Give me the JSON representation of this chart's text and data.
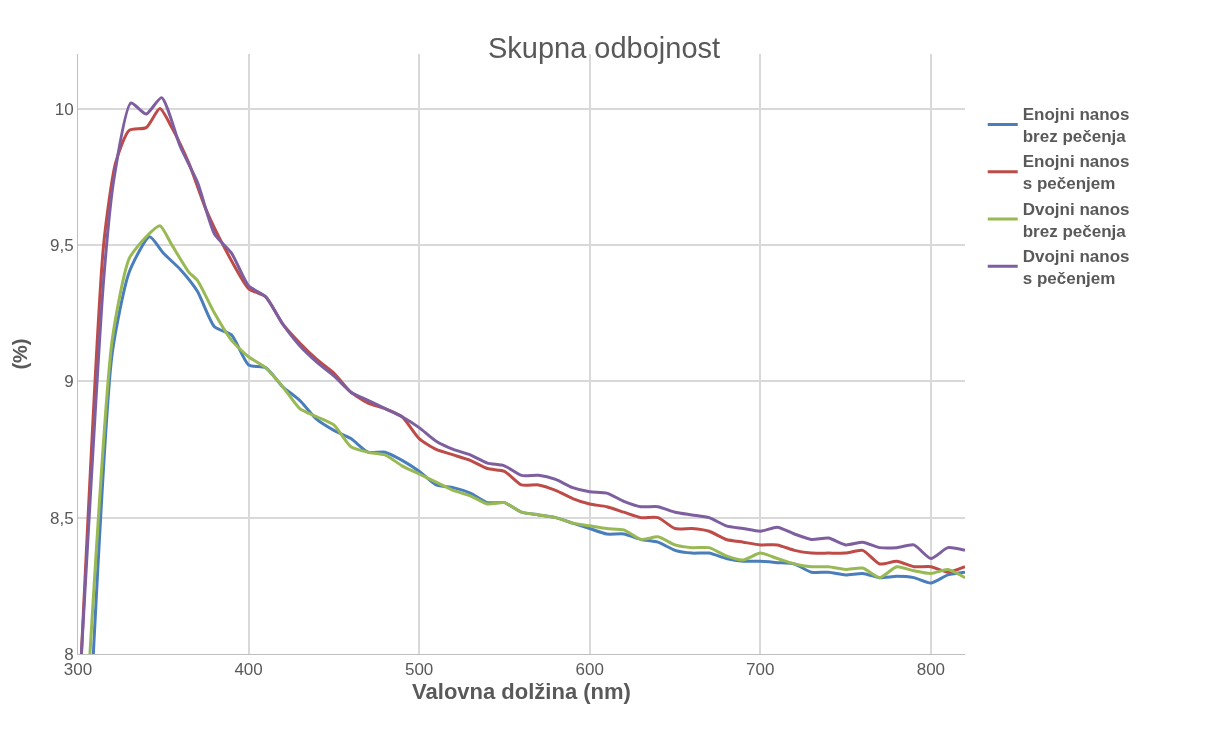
{
  "chart_data": {
    "type": "line",
    "title": "Skupna odbojnost",
    "xlabel": "Valovna dolžina (nm)",
    "ylabel": "(%)",
    "xlim": [
      300,
      820
    ],
    "xticks": [
      300,
      400,
      500,
      600,
      700,
      800
    ],
    "ylim": [
      8,
      10.2
    ],
    "yticks": [
      8,
      {
        "value": 8.5,
        "label": "8,5"
      },
      9,
      {
        "value": 9.5,
        "label": "9,5"
      },
      10
    ],
    "grid": true,
    "legend": "right",
    "marker": "none",
    "line_style": "solid",
    "series": [
      {
        "name": "Enojni nanos\nbrez pečenja",
        "color": "#4a7ebb",
        "x": [
          309,
          320,
          330,
          342,
          350,
          360,
          370,
          380,
          390,
          400,
          410,
          420,
          430,
          440,
          450,
          460,
          470,
          480,
          490,
          500,
          510,
          520,
          530,
          540,
          550,
          560,
          570,
          580,
          590,
          600,
          610,
          620,
          630,
          640,
          650,
          660,
          670,
          680,
          690,
          700,
          710,
          720,
          730,
          740,
          750,
          760,
          770,
          780,
          790,
          800,
          810,
          820
        ],
        "values": [
          8,
          9.1,
          9.4,
          9.53,
          9.47,
          9.41,
          9.33,
          9.2,
          9.17,
          9.06,
          9.05,
          8.98,
          8.93,
          8.86,
          8.82,
          8.79,
          8.74,
          8.74,
          8.71,
          8.67,
          8.62,
          8.61,
          8.59,
          8.555,
          8.555,
          8.52,
          8.51,
          8.5,
          8.48,
          8.46,
          8.44,
          8.44,
          8.42,
          8.41,
          8.38,
          8.37,
          8.37,
          8.35,
          8.34,
          8.34,
          8.335,
          8.33,
          8.3,
          8.3,
          8.29,
          8.295,
          8.28,
          8.285,
          8.28,
          8.26,
          8.29,
          8.3
        ]
      },
      {
        "name": "Enojni nanos\ns pečenjem",
        "color": "#be4b48",
        "x": [
          302,
          315,
          322,
          330,
          340,
          348,
          355,
          365,
          375,
          385,
          400,
          410,
          420,
          430,
          440,
          450,
          460,
          470,
          480,
          490,
          500,
          510,
          520,
          530,
          540,
          550,
          560,
          570,
          580,
          590,
          600,
          610,
          620,
          630,
          640,
          650,
          660,
          670,
          680,
          690,
          700,
          710,
          720,
          730,
          740,
          750,
          760,
          770,
          780,
          790,
          800,
          810,
          820
        ],
        "values": [
          8,
          9.5,
          9.8,
          9.92,
          9.93,
          10.0,
          9.93,
          9.8,
          9.63,
          9.5,
          9.34,
          9.31,
          9.21,
          9.14,
          9.08,
          9.03,
          8.96,
          8.92,
          8.9,
          8.87,
          8.79,
          8.75,
          8.73,
          8.71,
          8.68,
          8.67,
          8.62,
          8.62,
          8.6,
          8.57,
          8.55,
          8.54,
          8.52,
          8.5,
          8.5,
          8.46,
          8.46,
          8.45,
          8.42,
          8.41,
          8.4,
          8.4,
          8.38,
          8.37,
          8.37,
          8.37,
          8.38,
          8.33,
          8.34,
          8.32,
          8.32,
          8.3,
          8.32
        ]
      },
      {
        "name": "Dvojni nanos\nbrez pečenja",
        "color": "#98b954",
        "x": [
          307,
          320,
          330,
          340,
          348,
          355,
          365,
          370,
          380,
          390,
          400,
          410,
          420,
          430,
          440,
          450,
          460,
          470,
          480,
          490,
          500,
          510,
          520,
          530,
          540,
          550,
          560,
          570,
          580,
          590,
          600,
          610,
          620,
          630,
          640,
          650,
          660,
          670,
          680,
          690,
          700,
          710,
          720,
          730,
          740,
          750,
          760,
          770,
          780,
          790,
          800,
          810,
          820
        ],
        "values": [
          8,
          9.15,
          9.45,
          9.53,
          9.57,
          9.5,
          9.4,
          9.37,
          9.25,
          9.15,
          9.09,
          9.05,
          8.98,
          8.9,
          8.87,
          8.84,
          8.76,
          8.74,
          8.73,
          8.69,
          8.66,
          8.63,
          8.6,
          8.58,
          8.55,
          8.555,
          8.52,
          8.51,
          8.5,
          8.48,
          8.47,
          8.46,
          8.455,
          8.42,
          8.43,
          8.4,
          8.39,
          8.39,
          8.36,
          8.345,
          8.37,
          8.35,
          8.33,
          8.32,
          8.32,
          8.31,
          8.315,
          8.28,
          8.32,
          8.305,
          8.295,
          8.31,
          8.28
        ]
      },
      {
        "name": "Dvojni nanos\ns pečenjem",
        "color": "#7d5fa0",
        "x": [
          302,
          315,
          321,
          331,
          340,
          349,
          360,
          370,
          380,
          390,
          400,
          410,
          420,
          430,
          440,
          450,
          460,
          470,
          480,
          490,
          500,
          510,
          520,
          530,
          540,
          550,
          560,
          570,
          580,
          590,
          600,
          610,
          620,
          630,
          640,
          650,
          660,
          670,
          680,
          690,
          700,
          710,
          720,
          730,
          740,
          750,
          760,
          770,
          780,
          790,
          800,
          810,
          820
        ],
        "values": [
          8,
          9.37,
          9.74,
          10.02,
          9.98,
          10.04,
          9.86,
          9.73,
          9.54,
          9.47,
          9.35,
          9.31,
          9.21,
          9.13,
          9.07,
          9.02,
          8.96,
          8.93,
          8.9,
          8.87,
          8.83,
          8.78,
          8.75,
          8.73,
          8.7,
          8.69,
          8.655,
          8.655,
          8.64,
          8.61,
          8.595,
          8.59,
          8.56,
          8.54,
          8.54,
          8.52,
          8.51,
          8.5,
          8.47,
          8.46,
          8.45,
          8.465,
          8.44,
          8.42,
          8.425,
          8.4,
          8.41,
          8.39,
          8.39,
          8.4,
          8.35,
          8.39,
          8.38
        ]
      }
    ]
  }
}
